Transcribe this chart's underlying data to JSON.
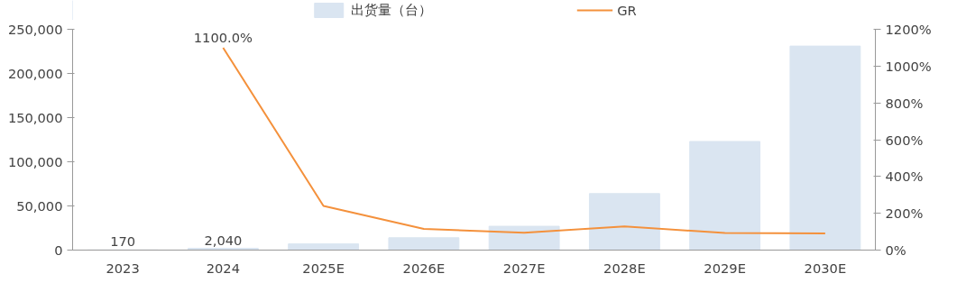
{
  "chart_data": {
    "type": "bar",
    "categories": [
      "2023",
      "2024",
      "2025E",
      "2026E",
      "2027E",
      "2028E",
      "2029E",
      "2030E"
    ],
    "series": [
      {
        "name": "出货量（台）",
        "color": "#dae5f1",
        "values": [
          170,
          2040,
          7000,
          14000,
          27000,
          64000,
          123000,
          231000
        ],
        "value_labels": [
          "170",
          "2,040",
          null,
          null,
          null,
          null,
          null,
          null
        ]
      },
      {
        "name": "GR",
        "type": "line",
        "axis": "y2",
        "color": "#f4913c",
        "values": [
          null,
          1100,
          240,
          115,
          94,
          129,
          93,
          91
        ],
        "value_labels": [
          null,
          "1100.0%",
          null,
          null,
          null,
          null,
          null,
          null
        ]
      }
    ],
    "ylim": [
      0,
      250000
    ],
    "yticks": [
      {
        "value": 0,
        "label": "0"
      },
      {
        "value": 50000,
        "label": "50,000"
      },
      {
        "value": 100000,
        "label": "100,000"
      },
      {
        "value": 150000,
        "label": "150,000"
      },
      {
        "value": 200000,
        "label": "200,000"
      },
      {
        "value": 250000,
        "label": "250,000"
      }
    ],
    "y2lim": [
      0,
      1200
    ],
    "y2ticks": [
      {
        "value": 0,
        "label": "0%"
      },
      {
        "value": 200,
        "label": "200%"
      },
      {
        "value": 400,
        "label": "400%"
      },
      {
        "value": 600,
        "label": "600%"
      },
      {
        "value": 800,
        "label": "800%"
      },
      {
        "value": 1000,
        "label": "1000%"
      },
      {
        "value": 1200,
        "label": "1200%"
      }
    ],
    "legend": "top",
    "grid": false
  }
}
